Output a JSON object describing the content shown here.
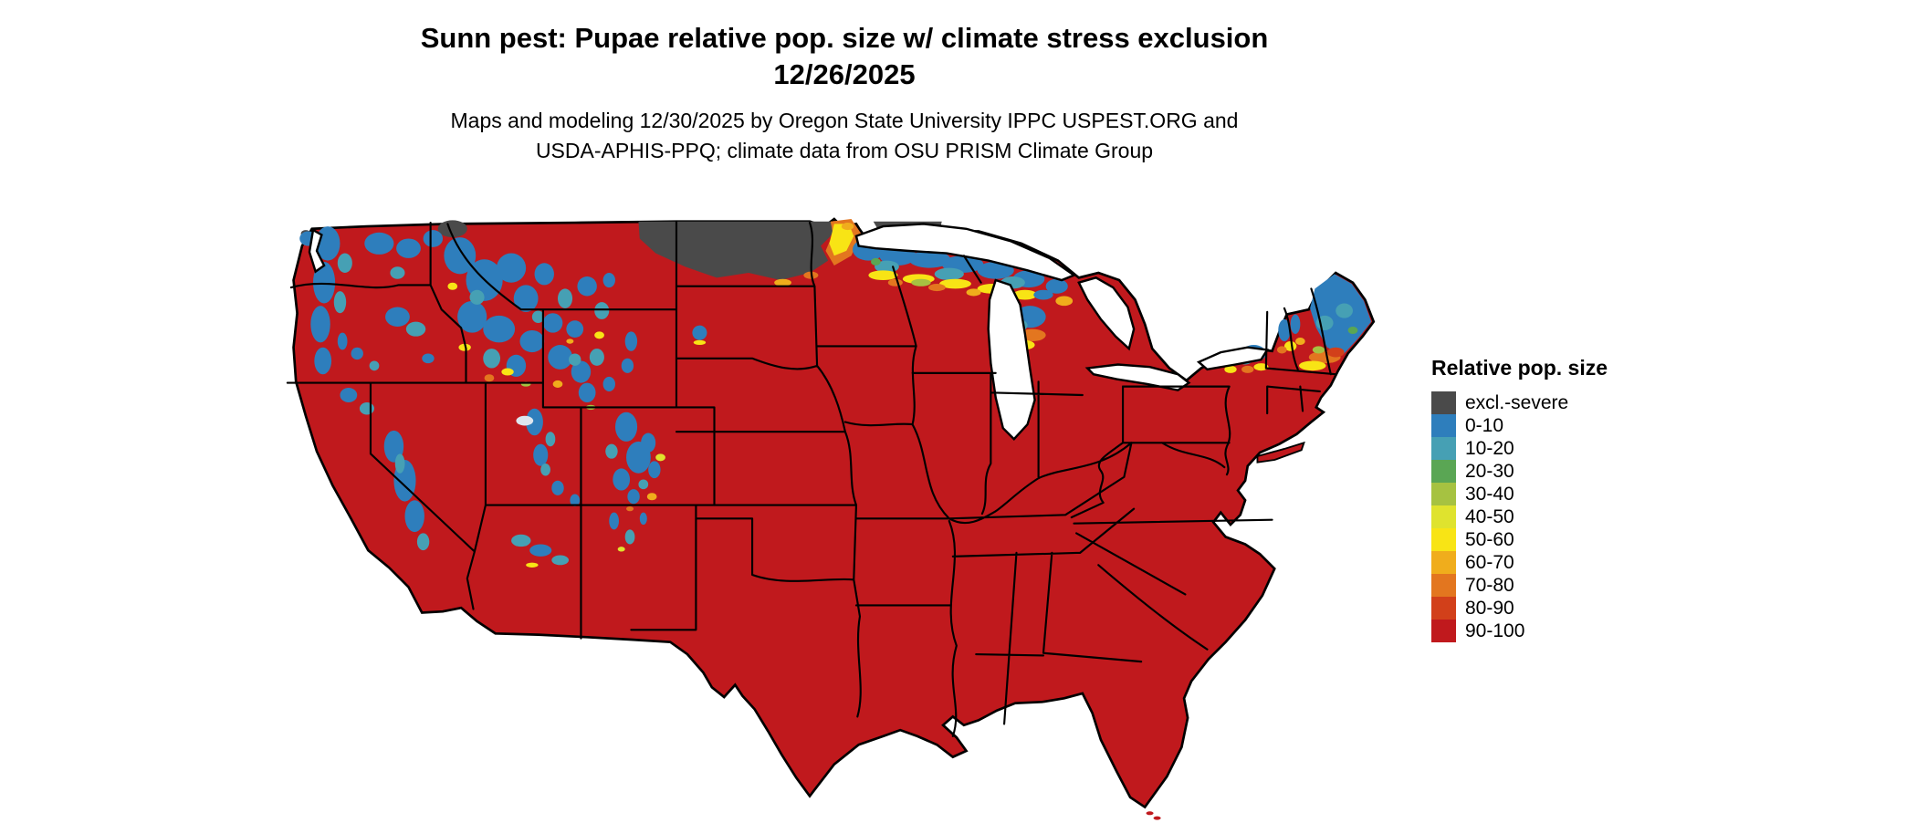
{
  "title": {
    "line1": "Sunn pest: Pupae relative pop. size w/ climate stress exclusion",
    "line2": "12/26/2025"
  },
  "subtitle": {
    "line1": "Maps and modeling 12/30/2025 by Oregon State University IPPC USPEST.ORG and",
    "line2": "USDA-APHIS-PPQ; climate data from OSU PRISM Climate Group"
  },
  "legend": {
    "title": "Relative pop. size",
    "items": [
      {
        "label": "excl.-severe",
        "color": "#4a4a4a"
      },
      {
        "label": "0-10",
        "color": "#2e7ebc"
      },
      {
        "label": "10-20",
        "color": "#46a0b4"
      },
      {
        "label": "20-30",
        "color": "#5aa654"
      },
      {
        "label": "30-40",
        "color": "#a6c241"
      },
      {
        "label": "40-50",
        "color": "#dfe32e"
      },
      {
        "label": "50-60",
        "color": "#f8e415"
      },
      {
        "label": "60-70",
        "color": "#f0ad1c"
      },
      {
        "label": "70-80",
        "color": "#e3761f"
      },
      {
        "label": "80-90",
        "color": "#d2401a"
      },
      {
        "label": "90-100",
        "color": "#c0191d"
      }
    ]
  }
}
